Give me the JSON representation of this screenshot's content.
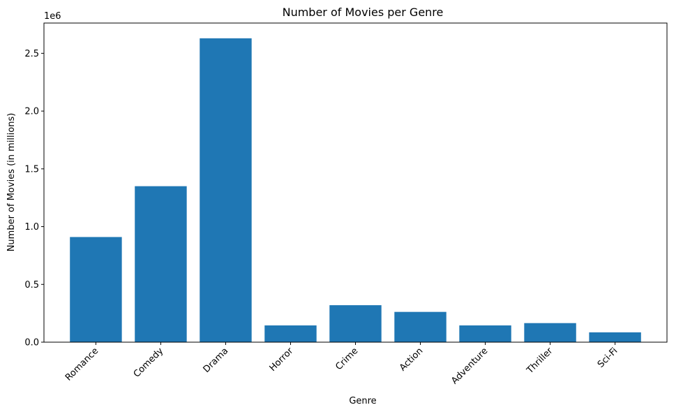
{
  "chart_data": {
    "type": "bar",
    "title": "Number of Movies per Genre",
    "xlabel": "Genre",
    "ylabel": "Number of Movies (in millions)",
    "offset_label": "1e6",
    "categories": [
      "Romance",
      "Comedy",
      "Drama",
      "Horror",
      "Crime",
      "Action",
      "Adventure",
      "Thriller",
      "Sci-Fi"
    ],
    "values": [
      910000,
      1350000,
      2630000,
      145000,
      320000,
      262000,
      145000,
      165000,
      85000
    ],
    "ylim": [
      0,
      2762000
    ],
    "yticks": [
      0,
      500000,
      1000000,
      1500000,
      2000000,
      2500000
    ],
    "ytick_labels": [
      "0.0",
      "0.5",
      "1.0",
      "1.5",
      "2.0",
      "2.5"
    ],
    "bar_color": "#1f77b4",
    "grid": false,
    "legend": false
  }
}
